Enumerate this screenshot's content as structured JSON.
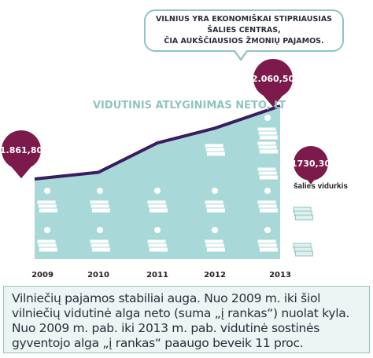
{
  "callout": {
    "line1": "VILNIUS YRA EKONOMIŠKAI STIPRIAUSIAS ŠALIES CENTRAS,",
    "line2": "ČIA AUKŠČIAUSIOS ŽMONIŲ PAJAMOS."
  },
  "chart_data": {
    "type": "area",
    "title": "VIDUTINIS ATLYGINIMAS NETO, LT",
    "x": [
      "2009",
      "2010",
      "2011",
      "2012",
      "2013"
    ],
    "series": [
      {
        "values": [
          1861.8,
          1880,
          1960,
          2000,
          2060.5
        ]
      }
    ],
    "labeled_points": [
      {
        "x": "2009",
        "label": "1.861,80"
      },
      {
        "x": "2013",
        "label": "2.060,50"
      }
    ],
    "reference": {
      "label": "šalies vidurkis",
      "value_label": "1730,30",
      "value": 1730.3
    },
    "colors": {
      "area": "#a8d8d8",
      "line": "#3a1d5e",
      "marker": "#7b1a4b"
    }
  },
  "description": "Vilniečių pajamos stabiliai auga. Nuo 2009 m. iki šiol vilniečių vidutinė alga neto (suma „į rankas“) nuolat kyla. Nuo 2009 m. pab. iki 2013 m. pab. vidutinė sostinės gyventojo alga „į rankas“ paaugo beveik 11 proc."
}
